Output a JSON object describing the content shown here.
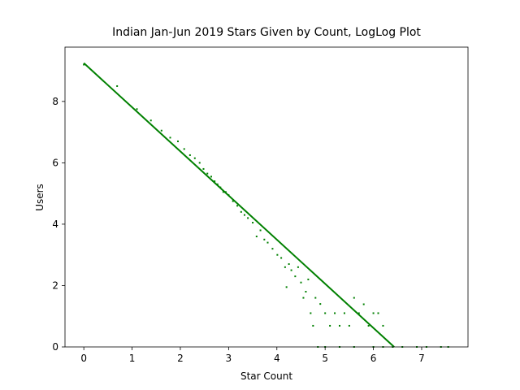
{
  "chart_data": {
    "type": "scatter",
    "title": "Indian Jan-Jun 2019 Stars Given by Count, LogLog Plot",
    "x_label": "Star Count",
    "y_label": "Users",
    "xlim": [
      -0.39,
      7.96
    ],
    "ylim": [
      0,
      9.77
    ],
    "xticks": [
      0,
      1,
      2,
      3,
      4,
      5,
      6,
      7
    ],
    "yticks": [
      0,
      2,
      4,
      6,
      8
    ],
    "series": [
      {
        "kind": "scatter",
        "color": "#008000",
        "x": [
          0,
          0.69,
          1.1,
          1.39,
          1.61,
          1.79,
          1.95,
          2.08,
          2.2,
          2.3,
          2.4,
          2.48,
          2.56,
          2.64,
          2.71,
          2.77,
          2.83,
          2.89,
          2.94,
          3.0,
          3.09,
          3.18,
          3.26,
          3.33,
          3.4,
          3.5,
          3.58,
          3.66,
          3.74,
          3.81,
          3.91,
          4.01,
          4.09,
          4.17,
          4.25,
          4.38,
          4.44,
          4.5,
          4.6,
          4.7,
          4.8,
          4.9,
          5.0,
          5.1,
          5.2,
          5.3,
          5.5,
          5.6,
          5.7,
          5.8,
          5.9,
          6.0,
          4.75,
          4.85,
          5.0,
          5.3,
          5.6,
          6.0,
          6.2,
          6.4,
          6.6,
          6.9,
          7.1,
          7.4,
          7.55,
          4.2,
          4.3,
          4.55,
          4.65,
          5.4,
          6.2,
          6.1
        ],
        "y": [
          9.2,
          8.5,
          7.75,
          7.38,
          7.05,
          6.82,
          6.7,
          6.45,
          6.25,
          6.15,
          6.0,
          5.8,
          5.65,
          5.55,
          5.4,
          5.3,
          5.2,
          5.05,
          5.05,
          4.95,
          4.75,
          4.6,
          4.4,
          4.3,
          4.2,
          4.05,
          3.6,
          3.8,
          3.5,
          3.4,
          3.2,
          3.0,
          2.9,
          2.6,
          2.7,
          2.3,
          2.6,
          2.1,
          1.8,
          1.1,
          1.6,
          1.4,
          1.1,
          0.69,
          1.1,
          0.69,
          0.69,
          1.6,
          1.1,
          1.39,
          0.69,
          1.1,
          0.69,
          0,
          0,
          0,
          0,
          0,
          0,
          0,
          0,
          0,
          0,
          0,
          0,
          1.95,
          2.5,
          1.6,
          2.2,
          1.1,
          0.69,
          1.1
        ]
      },
      {
        "kind": "line",
        "color": "#008000",
        "x": [
          0,
          6.43
        ],
        "y": [
          9.25,
          0
        ]
      }
    ]
  }
}
